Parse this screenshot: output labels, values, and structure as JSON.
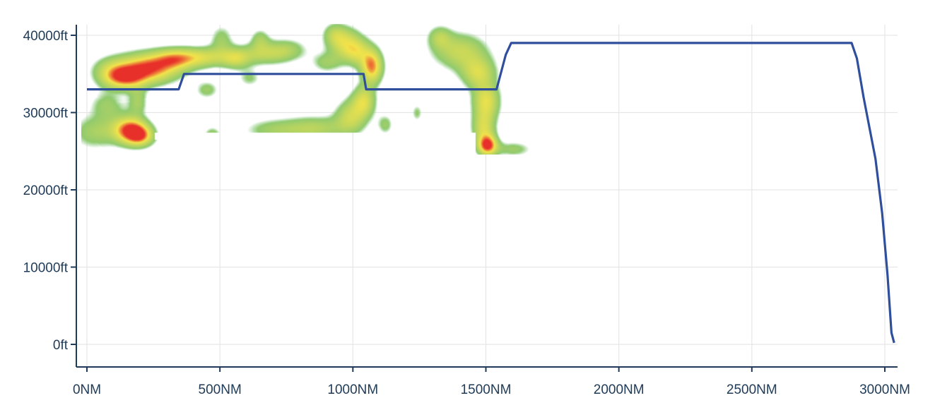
{
  "chart_data": {
    "type": "line",
    "title": "",
    "xlabel": "",
    "ylabel": "",
    "xlim": [
      -40,
      3030
    ],
    "ylim": [
      -3000,
      41500
    ],
    "grid": true,
    "x_ticks": [
      {
        "value": 0,
        "label": "0NM"
      },
      {
        "value": 500,
        "label": "500NM"
      },
      {
        "value": 1000,
        "label": "1000NM"
      },
      {
        "value": 1500,
        "label": "1500NM"
      },
      {
        "value": 2000,
        "label": "2000NM"
      },
      {
        "value": 2500,
        "label": "2500NM"
      },
      {
        "value": 3000,
        "label": "3000NM"
      }
    ],
    "y_ticks": [
      {
        "value": 0,
        "label": "0ft"
      },
      {
        "value": 10000,
        "label": "10000ft"
      },
      {
        "value": 20000,
        "label": "20000ft"
      },
      {
        "value": 30000,
        "label": "30000ft"
      },
      {
        "value": 40000,
        "label": "40000ft"
      }
    ],
    "series": [
      {
        "color": "#2f4f9c",
        "points": [
          {
            "x": 0,
            "y": 33000
          },
          {
            "x": 345,
            "y": 33000
          },
          {
            "x": 365,
            "y": 35000
          },
          {
            "x": 1040,
            "y": 35000
          },
          {
            "x": 1050,
            "y": 33000
          },
          {
            "x": 1540,
            "y": 33000
          },
          {
            "x": 1575,
            "y": 37500
          },
          {
            "x": 1595,
            "y": 39000
          },
          {
            "x": 2875,
            "y": 39000
          },
          {
            "x": 2895,
            "y": 37000
          },
          {
            "x": 2920,
            "y": 32000
          },
          {
            "x": 2965,
            "y": 24000
          },
          {
            "x": 2990,
            "y": 17000
          },
          {
            "x": 3010,
            "y": 9000
          },
          {
            "x": 3025,
            "y": 1500
          },
          {
            "x": 3035,
            "y": 200
          }
        ]
      }
    ],
    "heatmap": {
      "colors": {
        "low": "#7cc576",
        "mid": "#f3e34a",
        "high": "#e8302a"
      },
      "blobs": [
        {
          "x": 230,
          "y": 35800,
          "sx": 80,
          "sy": 1300,
          "v": 1.0
        },
        {
          "x": 140,
          "y": 34500,
          "sx": 55,
          "sy": 1000,
          "v": 0.75
        },
        {
          "x": 330,
          "y": 37000,
          "sx": 55,
          "sy": 900,
          "v": 0.55
        },
        {
          "x": 90,
          "y": 35500,
          "sx": 50,
          "sy": 1200,
          "v": 0.35
        },
        {
          "x": 160,
          "y": 27800,
          "sx": 45,
          "sy": 1200,
          "v": 1.0
        },
        {
          "x": 200,
          "y": 27000,
          "sx": 35,
          "sy": 900,
          "v": 0.7
        },
        {
          "x": 30,
          "y": 27500,
          "sx": 60,
          "sy": 1500,
          "v": 0.35
        },
        {
          "x": 75,
          "y": 31000,
          "sx": 45,
          "sy": 1300,
          "v": 0.3
        },
        {
          "x": 190,
          "y": 31500,
          "sx": 25,
          "sy": 1200,
          "v": 0.35
        },
        {
          "x": 440,
          "y": 37200,
          "sx": 75,
          "sy": 900,
          "v": 0.55
        },
        {
          "x": 560,
          "y": 37000,
          "sx": 35,
          "sy": 900,
          "v": 0.4
        },
        {
          "x": 505,
          "y": 39500,
          "sx": 30,
          "sy": 1300,
          "v": 0.3
        },
        {
          "x": 660,
          "y": 37600,
          "sx": 70,
          "sy": 1000,
          "v": 0.4
        },
        {
          "x": 750,
          "y": 38200,
          "sx": 55,
          "sy": 1000,
          "v": 0.3
        },
        {
          "x": 650,
          "y": 39500,
          "sx": 25,
          "sy": 1000,
          "v": 0.3
        },
        {
          "x": 900,
          "y": 36500,
          "sx": 40,
          "sy": 900,
          "v": 0.3
        },
        {
          "x": 1015,
          "y": 37800,
          "sx": 35,
          "sy": 1200,
          "v": 0.45
        },
        {
          "x": 1070,
          "y": 36000,
          "sx": 28,
          "sy": 1500,
          "v": 0.9
        },
        {
          "x": 970,
          "y": 39000,
          "sx": 45,
          "sy": 1400,
          "v": 0.55
        },
        {
          "x": 930,
          "y": 40200,
          "sx": 30,
          "sy": 1000,
          "v": 0.3
        },
        {
          "x": 450,
          "y": 33000,
          "sx": 30,
          "sy": 800,
          "v": 0.3
        },
        {
          "x": 610,
          "y": 34500,
          "sx": 30,
          "sy": 800,
          "v": 0.25
        },
        {
          "x": 470,
          "y": 27000,
          "sx": 22,
          "sy": 800,
          "v": 0.35
        },
        {
          "x": 700,
          "y": 27800,
          "sx": 80,
          "sy": 1000,
          "v": 0.3
        },
        {
          "x": 860,
          "y": 28000,
          "sx": 80,
          "sy": 1100,
          "v": 0.4
        },
        {
          "x": 990,
          "y": 29500,
          "sx": 40,
          "sy": 1500,
          "v": 0.5
        },
        {
          "x": 1040,
          "y": 31500,
          "sx": 30,
          "sy": 1400,
          "v": 0.6
        },
        {
          "x": 1120,
          "y": 28500,
          "sx": 20,
          "sy": 900,
          "v": 0.3
        },
        {
          "x": 1240,
          "y": 30000,
          "sx": 15,
          "sy": 800,
          "v": 0.25
        },
        {
          "x": 1400,
          "y": 38000,
          "sx": 70,
          "sy": 1600,
          "v": 0.5
        },
        {
          "x": 1325,
          "y": 39800,
          "sx": 30,
          "sy": 1000,
          "v": 0.35
        },
        {
          "x": 1470,
          "y": 35200,
          "sx": 45,
          "sy": 1400,
          "v": 0.55
        },
        {
          "x": 1500,
          "y": 31500,
          "sx": 35,
          "sy": 1600,
          "v": 0.65
        },
        {
          "x": 1490,
          "y": 28000,
          "sx": 30,
          "sy": 1500,
          "v": 0.55
        },
        {
          "x": 1505,
          "y": 25800,
          "sx": 25,
          "sy": 900,
          "v": 1.0
        },
        {
          "x": 1600,
          "y": 25300,
          "sx": 50,
          "sy": 700,
          "v": 0.3
        }
      ],
      "regions": [
        {
          "x0": -20,
          "x1": 1680,
          "y0": 24600,
          "y1": 41500
        }
      ],
      "cutouts": [
        {
          "x0": 270,
          "x1": 1460,
          "y0": 24600,
          "y1": 26500
        },
        {
          "x0": 255,
          "x1": 1460,
          "y0": 26500,
          "y1": 27400
        }
      ]
    }
  }
}
